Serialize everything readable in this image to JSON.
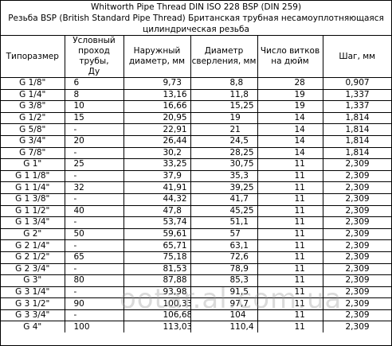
{
  "title": {
    "line1": "Whitworth Pipe Thread DIN ISO 228 BSP (DIN 259)",
    "line2": "Резьба BSP (British Standard Pipe Thread) Британская трубная несамоуплотняющаяся",
    "line3": "цилиндрическая резьба"
  },
  "headers": [
    "Типоразмер",
    "Условный\nпроход трубы,\nДу",
    "Наружный\nдиаметр, мм",
    "Диаметр\nсверления, мм",
    "Число витков\nна дюйм",
    "Шаг, мм"
  ],
  "rows": [
    [
      "G 1/8\"",
      "6",
      "9,73",
      "8,8",
      "28",
      "0,907"
    ],
    [
      "G 1/4\"",
      "8",
      "13,16",
      "11,8",
      "19",
      "1,337"
    ],
    [
      "G 3/8\"",
      "10",
      "16,66",
      "15,25",
      "19",
      "1,337"
    ],
    [
      "G 1/2\"",
      "15",
      "20,95",
      "19",
      "14",
      "1,814"
    ],
    [
      "G 5/8\"",
      "-",
      "22,91",
      "21",
      "14",
      "1,814"
    ],
    [
      "G 3/4\"",
      "20",
      "26,44",
      "24,5",
      "14",
      "1,814"
    ],
    [
      "G 7/8\"",
      "-",
      "30,2",
      "28,25",
      "14",
      "1,814"
    ],
    [
      "G 1\"",
      "25",
      "33,25",
      "30,75",
      "11",
      "2,309"
    ],
    [
      "G 1 1/8\"",
      "-",
      "37,9",
      "35,3",
      "11",
      "2,309"
    ],
    [
      "G 1 1/4\"",
      "32",
      "41,91",
      "39,25",
      "11",
      "2,309"
    ],
    [
      "G 1 3/8\"",
      "-",
      "44,32",
      "41,7",
      "11",
      "2,309"
    ],
    [
      "G 1 1/2\"",
      "40",
      "47,8",
      "45,25",
      "11",
      "2,309"
    ],
    [
      "G 1 3/4\"",
      "-",
      "53,74",
      "51,1",
      "11",
      "2,309"
    ],
    [
      "G 2\"",
      "50",
      "59,61",
      "57",
      "11",
      "2,309"
    ],
    [
      "G 2 1/4\"",
      "-",
      "65,71",
      "63,1",
      "11",
      "2,309"
    ],
    [
      "G 2 1/2\"",
      "65",
      "75,18",
      "72,6",
      "11",
      "2,309"
    ],
    [
      "G 2 3/4\"",
      "-",
      "81,53",
      "78,9",
      "11",
      "2,309"
    ],
    [
      "G 3\"",
      "80",
      "87,88",
      "85,3",
      "11",
      "2,309"
    ],
    [
      "G 3 1/4\"",
      "-",
      "93,98",
      "91,5",
      "11",
      "2,309"
    ],
    [
      "G 3 1/2\"",
      "90",
      "100,33",
      "97,7",
      "11",
      "2,309"
    ],
    [
      "G 3 3/4\"",
      "-",
      "106,68",
      "104",
      "11",
      "2,309"
    ],
    [
      "G 4\"",
      "100",
      "113,03",
      "110,4",
      "11",
      "2,309"
    ]
  ],
  "watermark": "ootar.al.com.ua"
}
